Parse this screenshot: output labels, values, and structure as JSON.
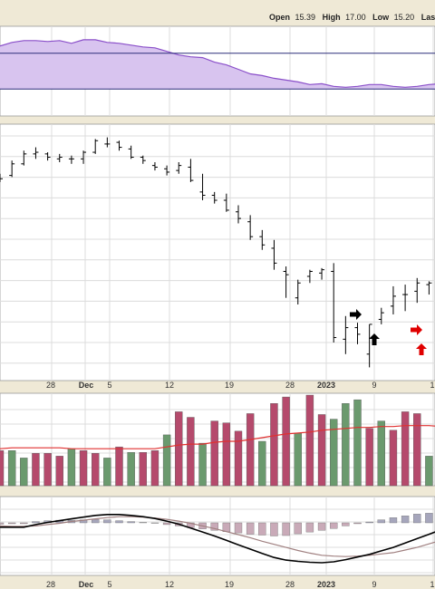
{
  "header": {
    "open_label": "Open",
    "open_value": "15.39",
    "high_label": "High",
    "high_value": "17.00",
    "low_label": "Low",
    "low_value": "15.20",
    "last_label": "Last"
  },
  "colors": {
    "frame_bg": "#efe9d6",
    "panel_bg": "#ffffff",
    "grid": "#dcdcdc",
    "rsi_fill": "#d8c4ef",
    "rsi_line": "#8a4fc9",
    "rsi_band": "#2d2f7a",
    "bar": "#000000",
    "vol_up": "#6b9a6e",
    "vol_down": "#b54a6c",
    "vol_ma": "#e03030",
    "hist": "#c9aab8",
    "hist_pos": "#a6a6bc",
    "macd": "#000000",
    "signal": "#a08080",
    "arrow_black": "#000000",
    "arrow_red": "#e00000"
  },
  "x_axis": {
    "ticks": [
      "28",
      "Dec",
      "5",
      "12",
      "19",
      "28",
      "2023",
      "9",
      "1"
    ],
    "bold_ticks": [
      "Dec",
      "2023"
    ]
  },
  "chart_data": [
    {
      "type": "line",
      "panel": "rsi",
      "values": [
        78,
        82,
        84,
        84,
        83,
        84,
        81,
        85,
        85,
        82,
        81,
        79,
        77,
        76,
        72,
        68,
        66,
        65,
        60,
        57,
        52,
        47,
        45,
        42,
        40,
        38,
        35,
        36,
        33,
        32,
        33,
        35,
        35,
        33,
        32,
        33,
        35,
        36
      ],
      "ylim": [
        0,
        100
      ]
    },
    {
      "type": "ohlc",
      "panel": "price",
      "bars": [
        {
          "o": 78,
          "h": 80,
          "l": 75,
          "c": 77
        },
        {
          "o": 79,
          "h": 88,
          "l": 78,
          "c": 86
        },
        {
          "o": 86,
          "h": 94,
          "l": 85,
          "c": 92
        },
        {
          "o": 92,
          "h": 96,
          "l": 89,
          "c": 93
        },
        {
          "o": 92,
          "h": 93,
          "l": 88,
          "c": 90
        },
        {
          "o": 89,
          "h": 92,
          "l": 87,
          "c": 90
        },
        {
          "o": 89,
          "h": 91,
          "l": 86,
          "c": 89
        },
        {
          "o": 89,
          "h": 94,
          "l": 86,
          "c": 93
        },
        {
          "o": 93,
          "h": 101,
          "l": 92,
          "c": 100
        },
        {
          "o": 98,
          "h": 102,
          "l": 96,
          "c": 98
        },
        {
          "o": 99,
          "h": 100,
          "l": 94,
          "c": 96
        },
        {
          "o": 95,
          "h": 97,
          "l": 89,
          "c": 90
        },
        {
          "o": 90,
          "h": 91,
          "l": 86,
          "c": 88
        },
        {
          "o": 85,
          "h": 87,
          "l": 82,
          "c": 84
        },
        {
          "o": 83,
          "h": 85,
          "l": 79,
          "c": 81
        },
        {
          "o": 82,
          "h": 87,
          "l": 80,
          "c": 85
        },
        {
          "o": 84,
          "h": 89,
          "l": 75,
          "c": 76
        },
        {
          "o": 69,
          "h": 80,
          "l": 64,
          "c": 67
        },
        {
          "o": 67,
          "h": 69,
          "l": 62,
          "c": 64
        },
        {
          "o": 64,
          "h": 68,
          "l": 57,
          "c": 58
        },
        {
          "o": 57,
          "h": 61,
          "l": 50,
          "c": 53
        },
        {
          "o": 51,
          "h": 55,
          "l": 40,
          "c": 42
        },
        {
          "o": 42,
          "h": 46,
          "l": 34,
          "c": 37
        },
        {
          "o": 35,
          "h": 40,
          "l": 22,
          "c": 26
        },
        {
          "o": 21,
          "h": 24,
          "l": 5,
          "c": 19
        },
        {
          "o": 5,
          "h": 16,
          "l": 1,
          "c": 14
        },
        {
          "o": 18,
          "h": 22,
          "l": 14,
          "c": 21
        },
        {
          "o": 20,
          "h": 23,
          "l": 16,
          "c": 22
        },
        {
          "o": 21,
          "h": 26,
          "l": -22,
          "c": -19
        },
        {
          "o": -20,
          "h": -6,
          "l": -29,
          "c": -13
        },
        {
          "o": -13,
          "h": -10,
          "l": -23,
          "c": -17
        },
        {
          "o": -29,
          "h": -11,
          "l": -37,
          "c": -11
        },
        {
          "o": -8,
          "h": -1,
          "l": -11,
          "c": -4
        },
        {
          "o": 0,
          "h": 12,
          "l": -5,
          "c": 6
        },
        {
          "o": 7,
          "h": 13,
          "l": -3,
          "c": 7
        },
        {
          "o": 9,
          "h": 17,
          "l": 2,
          "c": 14
        },
        {
          "o": 13,
          "h": 15,
          "l": 7,
          "c": 14
        },
        {
          "o": 14,
          "h": 18,
          "l": 6,
          "c": 16
        }
      ]
    },
    {
      "type": "bar",
      "panel": "volume",
      "values": [
        38,
        38,
        30,
        35,
        35,
        32,
        40,
        38,
        35,
        30,
        42,
        36,
        36,
        38,
        55,
        80,
        74,
        46,
        70,
        68,
        59,
        78,
        48,
        89,
        96,
        57,
        98,
        77,
        72,
        89,
        93,
        62,
        70,
        60,
        80,
        78,
        32,
        34
      ],
      "up": [
        false,
        true,
        true,
        false,
        false,
        false,
        true,
        false,
        false,
        true,
        false,
        true,
        false,
        false,
        true,
        false,
        false,
        true,
        false,
        false,
        false,
        false,
        true,
        false,
        false,
        true,
        false,
        false,
        true,
        true,
        true,
        false,
        true,
        false,
        false,
        false,
        true,
        false
      ],
      "ma": [
        40,
        41,
        41,
        41,
        41,
        41,
        40,
        40,
        40,
        40,
        40,
        40,
        40,
        40,
        42,
        44,
        45,
        45,
        47,
        48,
        48,
        50,
        52,
        54,
        56,
        57,
        58,
        60,
        61,
        62,
        63,
        63,
        64,
        64,
        65,
        65,
        65,
        64
      ],
      "ylim": [
        0,
        100
      ]
    },
    {
      "type": "line",
      "panel": "macd",
      "macd": [
        -1.0,
        -1.0,
        -1.0,
        -0.4,
        0.1,
        0.5,
        0.9,
        1.3,
        1.7,
        1.9,
        1.9,
        1.7,
        1.4,
        1.0,
        0.4,
        -0.3,
        -1.2,
        -2.1,
        -3.0,
        -4.0,
        -5.0,
        -6.0,
        -7.0,
        -7.9,
        -8.5,
        -8.8,
        -9.0,
        -9.1,
        -8.9,
        -8.4,
        -7.8,
        -7.2,
        -6.4,
        -5.6,
        -4.6,
        -3.6,
        -2.6,
        -1.6
      ],
      "signal": [
        -0.7,
        -0.8,
        -0.8,
        -0.7,
        -0.4,
        -0.1,
        0.3,
        0.6,
        0.9,
        1.2,
        1.4,
        1.4,
        1.3,
        1.1,
        0.8,
        0.4,
        -0.1,
        -0.7,
        -1.3,
        -2.0,
        -2.7,
        -3.4,
        -4.2,
        -4.9,
        -5.6,
        -6.3,
        -6.9,
        -7.4,
        -7.6,
        -7.7,
        -7.6,
        -7.4,
        -7.1,
        -6.8,
        -6.2,
        -5.6,
        -4.8,
        -4.0
      ],
      "histogram": [
        -0.3,
        -0.2,
        -0.2,
        0.3,
        0.5,
        0.6,
        0.6,
        0.7,
        0.8,
        0.7,
        0.5,
        0.3,
        0.1,
        -0.1,
        -0.4,
        -0.7,
        -1.1,
        -1.4,
        -1.7,
        -2.0,
        -2.3,
        -2.6,
        -2.8,
        -3.0,
        -2.9,
        -2.5,
        -2.1,
        -1.7,
        -1.3,
        -0.7,
        -0.2,
        0.2,
        0.7,
        1.2,
        1.6,
        2.0,
        2.2,
        2.4
      ],
      "ylim": [
        -12,
        6
      ]
    }
  ]
}
